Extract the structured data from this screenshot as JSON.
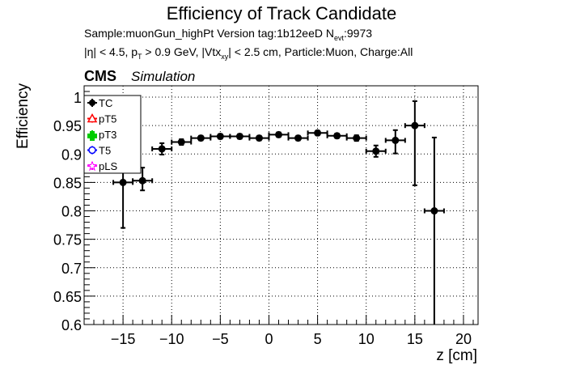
{
  "header": {
    "title": "Efficiency of Track Candidate",
    "info_line1": "Sample:muonGun_highPt   Version tag:1b12eeD  N",
    "info_line1_sub": "evt",
    "info_line1_tail": ":9973",
    "cms_label": "CMS",
    "simulation_label": "Simulation"
  },
  "cuts": {
    "eta": "|η| < 4.5, p",
    "pt_sub": "T",
    "pt": " > 0.9 GeV, |Vtx",
    "vtx_sub": "xy",
    "rest": "| < 2.5 cm, Particle:Muon, Charge:All"
  },
  "colors": {
    "TC": "#000000",
    "pT5": "#ff0000",
    "pT3": "#00cc00",
    "T5": "#0000ff",
    "pLS": "#ff00ff"
  },
  "chart_data": {
    "type": "scatter",
    "title": "Efficiency of Track Candidate",
    "xlabel": "z [cm]",
    "ylabel": "Efficiency",
    "xlim": [
      -19,
      21.5
    ],
    "ylim": [
      0.6,
      1.02
    ],
    "grid": true,
    "legend_position": "top-left",
    "x_ticks": [
      "−15",
      "−10",
      "−5",
      "0",
      "5",
      "10",
      "15",
      "20"
    ],
    "x_tick_values": [
      -15,
      -10,
      -5,
      0,
      5,
      10,
      15,
      20
    ],
    "y_ticks": [
      "0.6",
      "0.65",
      "0.7",
      "0.75",
      "0.8",
      "0.85",
      "0.9",
      "0.95",
      "1"
    ],
    "y_tick_values": [
      0.6,
      0.65,
      0.7,
      0.75,
      0.8,
      0.85,
      0.9,
      0.95,
      1.0
    ],
    "series": [
      {
        "name": "TC",
        "points": [
          {
            "x": -15,
            "xerr": 1,
            "y": 0.85,
            "ylo": 0.77,
            "yhi": 0.87
          },
          {
            "x": -13,
            "xerr": 1,
            "y": 0.853,
            "ylo": 0.836,
            "yhi": 0.876
          },
          {
            "x": -11,
            "xerr": 1,
            "y": 0.909,
            "ylo": 0.899,
            "yhi": 0.919
          },
          {
            "x": -9,
            "xerr": 1,
            "y": 0.921,
            "ylo": 0.916,
            "yhi": 0.926
          },
          {
            "x": -7,
            "xerr": 1,
            "y": 0.928,
            "ylo": 0.924,
            "yhi": 0.932
          },
          {
            "x": -5,
            "xerr": 1,
            "y": 0.931,
            "ylo": 0.927,
            "yhi": 0.935
          },
          {
            "x": -3,
            "xerr": 1,
            "y": 0.931,
            "ylo": 0.927,
            "yhi": 0.935
          },
          {
            "x": -1,
            "xerr": 1,
            "y": 0.928,
            "ylo": 0.924,
            "yhi": 0.932
          },
          {
            "x": 1,
            "xerr": 1,
            "y": 0.934,
            "ylo": 0.93,
            "yhi": 0.938
          },
          {
            "x": 3,
            "xerr": 1,
            "y": 0.928,
            "ylo": 0.924,
            "yhi": 0.932
          },
          {
            "x": 5,
            "xerr": 1,
            "y": 0.937,
            "ylo": 0.933,
            "yhi": 0.941
          },
          {
            "x": 7,
            "xerr": 1,
            "y": 0.932,
            "ylo": 0.928,
            "yhi": 0.936
          },
          {
            "x": 9,
            "xerr": 1,
            "y": 0.928,
            "ylo": 0.923,
            "yhi": 0.933
          },
          {
            "x": 11,
            "xerr": 1,
            "y": 0.905,
            "ylo": 0.895,
            "yhi": 0.915
          },
          {
            "x": 13,
            "xerr": 1,
            "y": 0.924,
            "ylo": 0.901,
            "yhi": 0.942
          },
          {
            "x": 15,
            "xerr": 1,
            "y": 0.95,
            "ylo": 0.845,
            "yhi": 0.993
          },
          {
            "x": 17,
            "xerr": 1,
            "y": 0.8,
            "ylo": 0.6,
            "yhi": 0.929
          }
        ]
      }
    ],
    "legend": [
      {
        "label": "TC",
        "color_key": "TC",
        "marker": "filled-circle"
      },
      {
        "label": "pT5",
        "color_key": "pT5",
        "marker": "open-triangle"
      },
      {
        "label": "pT3",
        "color_key": "pT3",
        "marker": "filled-plus"
      },
      {
        "label": "T5",
        "color_key": "T5",
        "marker": "open-circle"
      },
      {
        "label": "pLS",
        "color_key": "pLS",
        "marker": "open-star"
      }
    ]
  }
}
